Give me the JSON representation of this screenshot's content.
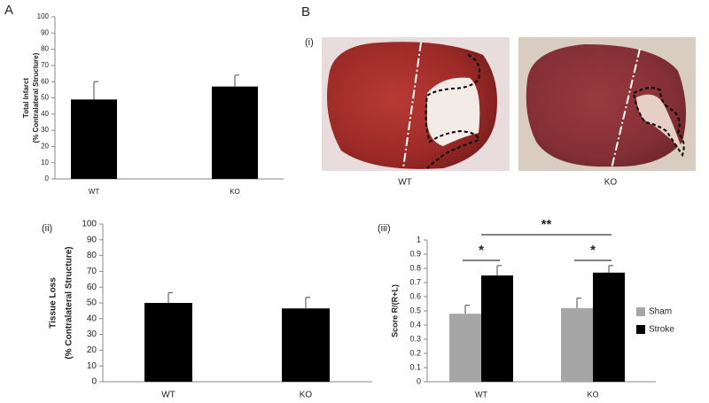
{
  "panel_labels": [
    "A",
    "B"
  ],
  "images": {
    "label": "(i)",
    "captions": [
      "WT",
      "KO"
    ]
  },
  "chart_data": [
    {
      "type": "bar",
      "ylabel": [
        "Total Infarct",
        "(% Contralateral Structure)"
      ],
      "categories": [
        "WT",
        "KO"
      ],
      "values": [
        49,
        57
      ],
      "errors": [
        11,
        7
      ],
      "color": "#000000",
      "ylim": [
        0,
        100
      ],
      "yticks": [
        0,
        10,
        20,
        30,
        40,
        50,
        60,
        70,
        80,
        90,
        100
      ]
    },
    {
      "type": "bar",
      "panel_label": "(ii)",
      "ylabel": [
        "Tissue  Loss",
        "(% Contralateral Structure)"
      ],
      "categories": [
        "WT",
        "KO"
      ],
      "values": [
        50,
        46.5
      ],
      "errors": [
        6.5,
        7
      ],
      "color": "#000000",
      "ylim": [
        0,
        100
      ],
      "yticks": [
        0,
        10,
        20,
        30,
        40,
        50,
        60,
        70,
        80,
        90,
        100
      ]
    },
    {
      "type": "grouped_bar",
      "panel_label": "(iii)",
      "ylabel": [
        "Score R/(R+L)"
      ],
      "categories": [
        "WT",
        "KO"
      ],
      "series": [
        {
          "name": "Sham",
          "color": "#a6a6a6",
          "values": [
            0.48,
            0.52
          ],
          "errors": [
            0.06,
            0.07
          ]
        },
        {
          "name": "Stroke",
          "color": "#000000",
          "values": [
            0.75,
            0.77
          ],
          "errors": [
            0.07,
            0.05
          ]
        }
      ],
      "ylim": [
        0,
        1
      ],
      "yticks": [
        0,
        0.1,
        0.2,
        0.3,
        0.4,
        0.5,
        0.6,
        0.7,
        0.8,
        0.9,
        1
      ],
      "annotations": [
        "*",
        "*",
        "**"
      ],
      "legend": "right"
    }
  ]
}
